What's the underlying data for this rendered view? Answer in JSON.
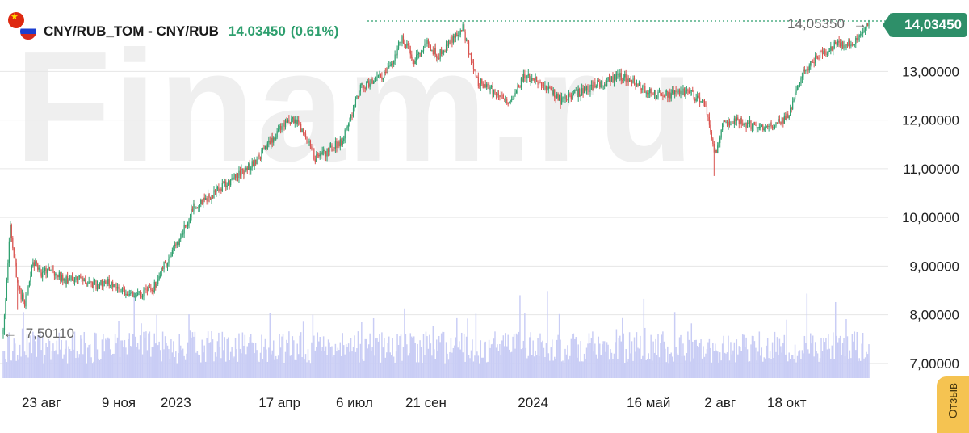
{
  "header": {
    "instrument": "CNY/RUB_TOM - CNY/RUB",
    "price": "14.03450",
    "change": "(0.61%)",
    "flag_primary": "china-flag-icon",
    "flag_secondary": "russia-flag-icon"
  },
  "watermark": "Finam.ru",
  "last_price_label": "14,03450",
  "feedback_label": "Отзыв",
  "colors": {
    "up": "#2e9f6e",
    "down": "#d9534f",
    "volume": "#c9cdf5",
    "grid": "#e6e6e6",
    "badge": "#2e8f69"
  },
  "chart_data": {
    "type": "candlestick",
    "title": "CNY/RUB_TOM - CNY/RUB",
    "y_axis": {
      "side": "right",
      "min": 6.7,
      "max": 14.3,
      "ticks": [
        7,
        8,
        9,
        10,
        11,
        12,
        13
      ],
      "tick_labels": [
        "7,00000",
        "8,00000",
        "9,00000",
        "10,00000",
        "11,00000",
        "12,00000",
        "13,00000"
      ]
    },
    "x_axis": {
      "tick_labels": [
        "23 авг",
        "9 ноя",
        "2023",
        "17 апр",
        "6 июл",
        "21 сен",
        "2024",
        "16 май",
        "2 авг",
        "18 окт"
      ],
      "tick_indices": [
        32,
        97,
        145,
        232,
        295,
        355,
        445,
        542,
        602,
        658
      ]
    },
    "grid": true,
    "n_bars": 727,
    "keypoints": [
      [
        0,
        7.6
      ],
      [
        6,
        9.8
      ],
      [
        12,
        8.6
      ],
      [
        18,
        8.2
      ],
      [
        25,
        9.1
      ],
      [
        32,
        8.85
      ],
      [
        40,
        8.95
      ],
      [
        52,
        8.7
      ],
      [
        65,
        8.75
      ],
      [
        78,
        8.6
      ],
      [
        88,
        8.7
      ],
      [
        97,
        8.55
      ],
      [
        110,
        8.4
      ],
      [
        125,
        8.5
      ],
      [
        135,
        9.0
      ],
      [
        145,
        9.4
      ],
      [
        160,
        10.2
      ],
      [
        175,
        10.45
      ],
      [
        190,
        10.75
      ],
      [
        210,
        11.1
      ],
      [
        225,
        11.55
      ],
      [
        232,
        11.85
      ],
      [
        245,
        12.0
      ],
      [
        255,
        11.6
      ],
      [
        262,
        11.2
      ],
      [
        272,
        11.35
      ],
      [
        285,
        11.6
      ],
      [
        292,
        12.1
      ],
      [
        300,
        12.65
      ],
      [
        312,
        12.85
      ],
      [
        322,
        12.95
      ],
      [
        335,
        13.7
      ],
      [
        345,
        13.2
      ],
      [
        355,
        13.6
      ],
      [
        365,
        13.3
      ],
      [
        378,
        13.7
      ],
      [
        386,
        13.9
      ],
      [
        398,
        12.8
      ],
      [
        412,
        12.6
      ],
      [
        425,
        12.4
      ],
      [
        438,
        12.9
      ],
      [
        452,
        12.75
      ],
      [
        468,
        12.4
      ],
      [
        482,
        12.55
      ],
      [
        500,
        12.75
      ],
      [
        520,
        12.9
      ],
      [
        540,
        12.6
      ],
      [
        555,
        12.5
      ],
      [
        575,
        12.6
      ],
      [
        590,
        12.3
      ],
      [
        598,
        11.3
      ],
      [
        604,
        11.9
      ],
      [
        618,
        12.0
      ],
      [
        632,
        11.85
      ],
      [
        648,
        11.9
      ],
      [
        660,
        12.1
      ],
      [
        670,
        12.9
      ],
      [
        685,
        13.35
      ],
      [
        700,
        13.55
      ],
      [
        712,
        13.55
      ],
      [
        727,
        14.03
      ]
    ],
    "events": [
      {
        "index": 597,
        "low": 10.85
      },
      {
        "index": 12,
        "low": 8.1
      }
    ],
    "annotations": [
      {
        "label": "7,50110",
        "value": 7.5011,
        "type": "min",
        "index": 0
      },
      {
        "label": "14,05350",
        "value": 14.0535,
        "type": "max",
        "index": 727
      },
      {
        "label": "14,03450",
        "value": 14.0345,
        "type": "last",
        "index": 727
      }
    ]
  }
}
